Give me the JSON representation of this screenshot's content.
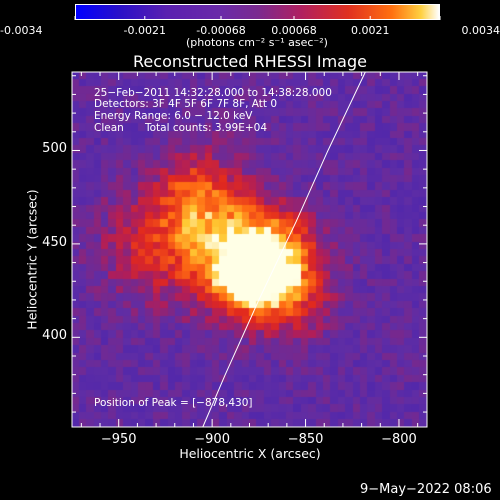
{
  "colorbar": {
    "ticks": [
      "-0.0034",
      "-0.0021",
      "-0.00068",
      "0.00068",
      "0.0021",
      "0.0034"
    ],
    "tick_values": [
      -0.0034,
      -0.0021,
      -0.00068,
      0.00068,
      0.0021,
      0.0034
    ],
    "range": [
      -0.0034,
      0.0034
    ],
    "unit_label": "(photons cm⁻² s⁻¹ asec⁻²)"
  },
  "chart_data": {
    "type": "heatmap",
    "title": "Reconstructed RHESSI Image",
    "xlabel": "Heliocentric X (arcsec)",
    "ylabel": "Heliocentric Y (arcsec)",
    "xlim": [
      -975,
      -785
    ],
    "ylim": [
      352,
      542
    ],
    "x_ticks": [
      -950,
      -900,
      -850,
      -800
    ],
    "x_tick_labels": [
      "−950",
      "−900",
      "−850",
      "−800"
    ],
    "y_ticks": [
      400,
      450,
      500
    ],
    "y_tick_labels": [
      "400",
      "450",
      "500"
    ],
    "peak": [
      -878,
      430
    ],
    "source_regions": [
      {
        "x": -895,
        "y": 455,
        "sx": 18,
        "sy": 26,
        "amp": 0.55
      },
      {
        "x": -878,
        "y": 430,
        "sx": 14,
        "sy": 12,
        "amp": 1.0
      },
      {
        "x": -870,
        "y": 450,
        "sx": 18,
        "sy": 14,
        "amp": 0.6
      },
      {
        "x": -930,
        "y": 450,
        "sx": 20,
        "sy": 20,
        "amp": 0.45
      },
      {
        "x": -858,
        "y": 425,
        "sx": 16,
        "sy": 18,
        "amp": 0.5
      },
      {
        "x": -912,
        "y": 478,
        "sx": 12,
        "sy": 14,
        "amp": 0.35
      }
    ],
    "limb_curve": [
      [
        -905,
        352
      ],
      [
        -893,
        380
      ],
      [
        -875,
        420
      ],
      [
        -855,
        462
      ],
      [
        -838,
        500
      ],
      [
        -818,
        542
      ]
    ],
    "colors": {
      "negative_low": "#0000ff",
      "negative_mid": "#7b2fc0",
      "zero": "#5b2ea0",
      "positive_mid": "#e02020",
      "positive_high": "#ffa020",
      "max": "#ffffff"
    },
    "annotations": {
      "time_range": "25−Feb−2011 14:32:28.000 to 14:38:28.000",
      "detectors": "Detectors: 3F 4F 5F 6F 7F 8F, Att 0",
      "energy_range": "Energy Range: 6.0 − 12.0 keV",
      "clean": "Clean",
      "total_counts": "Total counts: 3.99E+04",
      "peak_label": "Position of Peak = [−878,430]"
    }
  },
  "footer": {
    "timestamp": "9−May−2022 08:06"
  }
}
